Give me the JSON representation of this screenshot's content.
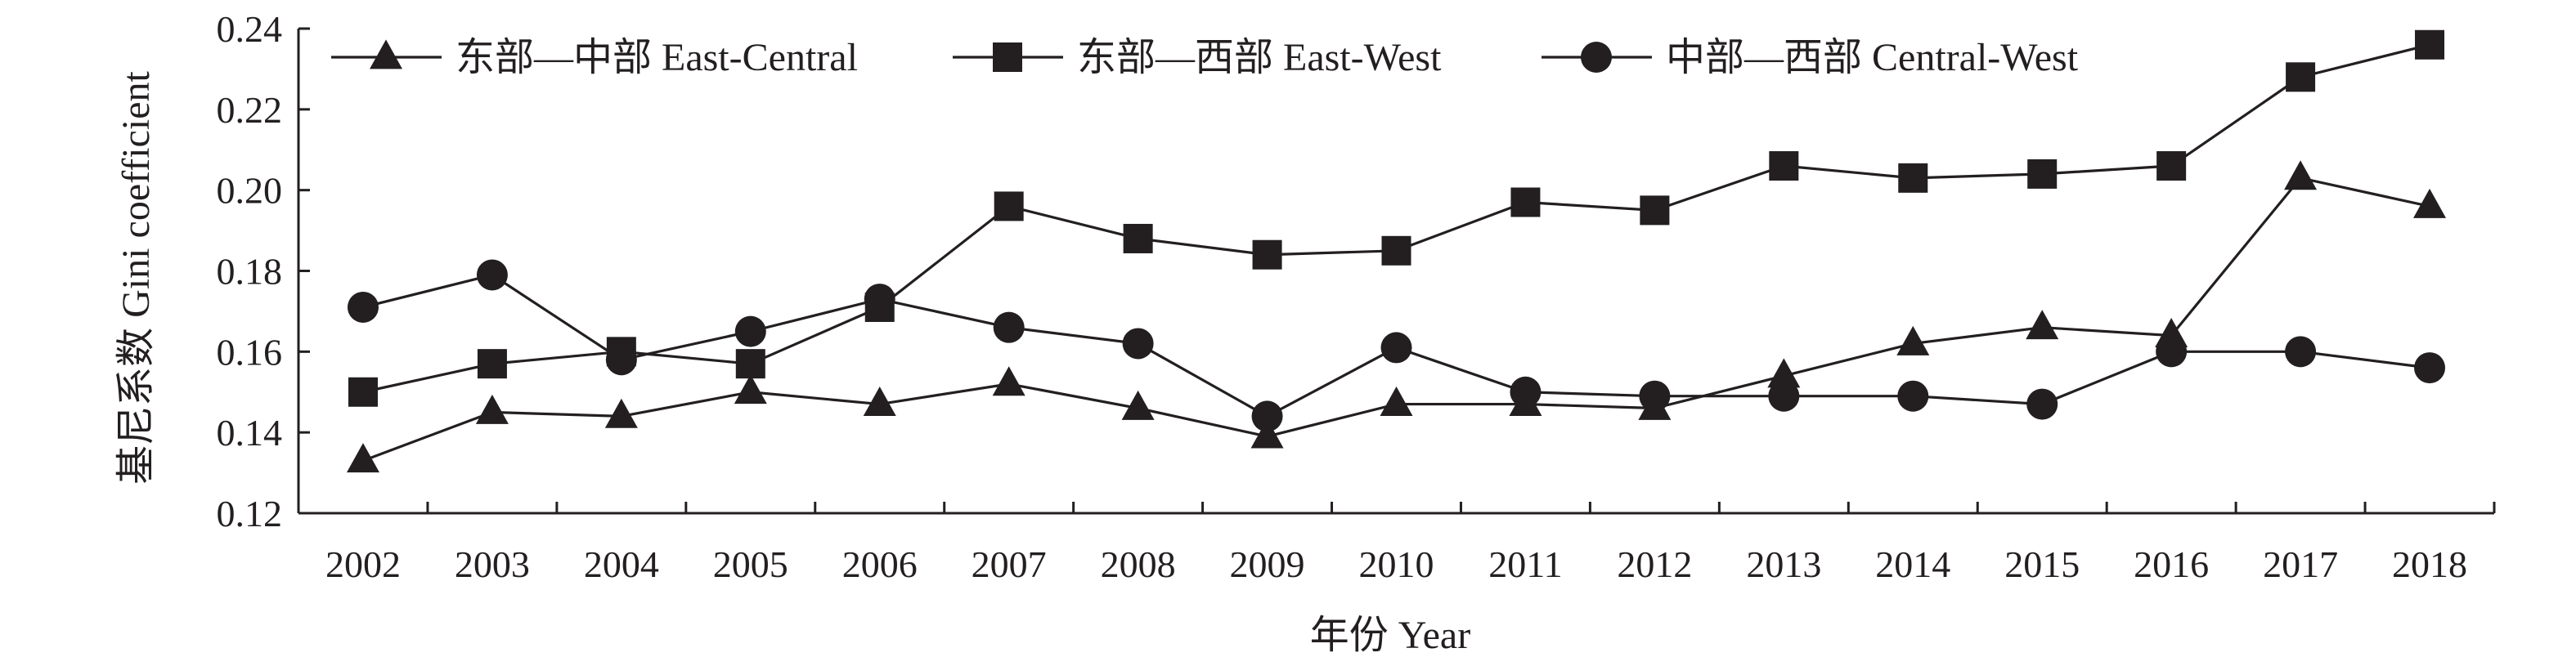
{
  "chart_data": {
    "type": "line",
    "xlabel": "年份 Year",
    "ylabel": "基尼系数 Gini coefficient",
    "ylim": [
      0.12,
      0.24
    ],
    "yticks": [
      "0.12",
      "0.14",
      "0.16",
      "0.18",
      "0.20",
      "0.22",
      "0.24"
    ],
    "grid": false,
    "legend_position": "top",
    "categories": [
      "2002",
      "2003",
      "2004",
      "2005",
      "2006",
      "2007",
      "2008",
      "2009",
      "2010",
      "2011",
      "2012",
      "2013",
      "2014",
      "2015",
      "2016",
      "2017",
      "2018"
    ],
    "series": [
      {
        "name": "东部—中部 East-Central",
        "marker": "triangle",
        "values": [
          0.133,
          0.145,
          0.144,
          0.15,
          0.147,
          0.152,
          0.146,
          0.139,
          0.147,
          0.147,
          0.146,
          0.154,
          0.162,
          0.166,
          0.164,
          0.203,
          0.196
        ]
      },
      {
        "name": "东部—西部 East-West",
        "marker": "square",
        "values": [
          0.15,
          0.157,
          0.16,
          0.157,
          0.171,
          0.196,
          0.188,
          0.184,
          0.185,
          0.197,
          0.195,
          0.206,
          0.203,
          0.204,
          0.206,
          0.228,
          0.236
        ]
      },
      {
        "name": "中部—西部 Central-West",
        "marker": "circle",
        "values": [
          0.171,
          0.179,
          0.158,
          0.165,
          0.173,
          0.166,
          0.162,
          0.144,
          0.161,
          0.15,
          0.149,
          0.149,
          0.149,
          0.147,
          0.16,
          0.16,
          0.156
        ]
      }
    ],
    "colors": {
      "line": "#231f20",
      "marker": "#231f20"
    }
  }
}
